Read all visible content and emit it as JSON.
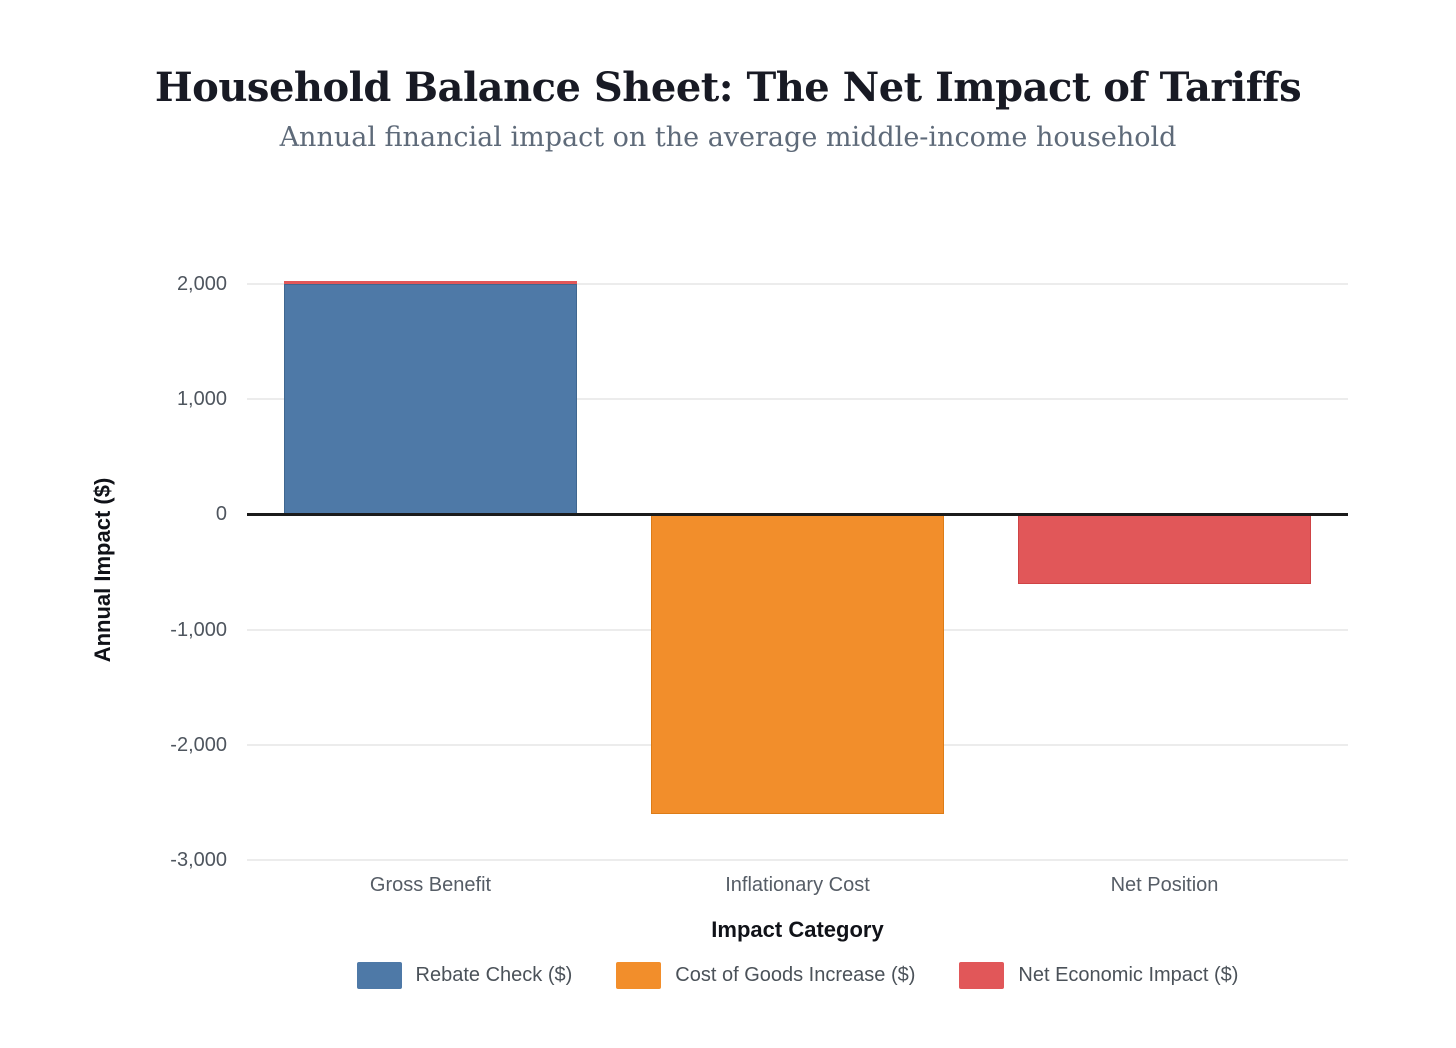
{
  "header": {
    "title": "Household Balance Sheet: The Net Impact of Tariffs",
    "subtitle": "Annual financial impact on the average middle-income household"
  },
  "chart_data": {
    "type": "bar",
    "title": "Household Balance Sheet: The Net Impact of Tariffs",
    "subtitle": "Annual financial impact on the average middle-income household",
    "xlabel": "Impact Category",
    "ylabel": "Annual Impact ($)",
    "categories": [
      "Gross Benefit",
      "Inflationary Cost",
      "Net Position"
    ],
    "series": [
      {
        "name": "Rebate Check ($)",
        "color": "#4e79a7",
        "border_color": "#3f6790",
        "values": [
          2000,
          null,
          null
        ]
      },
      {
        "name": "Cost of Goods Increase ($)",
        "color": "#f28e2b",
        "border_color": "#dd7c17",
        "values": [
          null,
          -2600,
          null
        ]
      },
      {
        "name": "Net Economic Impact ($)",
        "color": "#e15759",
        "border_color": "#cf4345",
        "values": [
          null,
          null,
          -600
        ]
      }
    ],
    "ylim": [
      -3000,
      2000
    ],
    "yticks": [
      {
        "value": 2000,
        "label": "2,000"
      },
      {
        "value": 1000,
        "label": "1,000"
      },
      {
        "value": 0,
        "label": "0"
      },
      {
        "value": -1000,
        "label": "-1,000"
      },
      {
        "value": -2000,
        "label": "-2,000"
      },
      {
        "value": -3000,
        "label": "-3,000"
      }
    ],
    "grid": true,
    "legend_position": "bottom",
    "annotations": [
      {
        "type": "bar_top_stripe",
        "category_index": 0,
        "color": "#e15759",
        "thickness": 3
      }
    ],
    "colors": {
      "gridline": "#ececec",
      "zero_line": "#1b1b1b",
      "tick_label": "#4e555e",
      "axis_title": "#101218",
      "legend_label": "#4b5259",
      "title": "#181a24",
      "subtitle": "#5e6a79",
      "background": "#ffffff"
    }
  }
}
